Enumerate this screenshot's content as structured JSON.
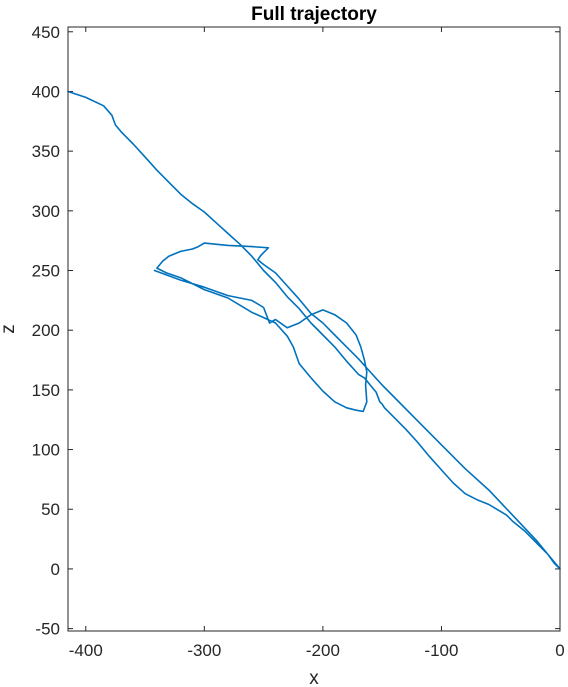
{
  "chart_data": {
    "type": "line",
    "title": "Full trajectory",
    "xlabel": "x",
    "ylabel": "z",
    "xlim": [
      -415,
      0
    ],
    "ylim": [
      -52,
      454
    ],
    "xticks": [
      -400,
      -300,
      -200,
      -100,
      0
    ],
    "yticks": [
      -50,
      0,
      50,
      100,
      150,
      200,
      250,
      300,
      350,
      400,
      450
    ],
    "grid": false,
    "series": [
      {
        "color": "#0072bd",
        "x": [
          -415,
          -400,
          -385,
          -378,
          -375,
          -370,
          -360,
          -350,
          -340,
          -330,
          -320,
          -310,
          -300,
          -290,
          -280,
          -270,
          -260,
          -250,
          -240,
          -230,
          -220,
          -210,
          -200,
          -190,
          -180,
          -170,
          -165,
          -160,
          -155,
          -152,
          -150,
          -148,
          -140,
          -130,
          -120,
          -110,
          -100,
          -90,
          -80,
          -70,
          -60,
          -50,
          -45,
          -40,
          -30,
          -20,
          -10,
          -5,
          -2,
          0,
          -10,
          -20,
          -40,
          -60,
          -80,
          -100,
          -120,
          -140,
          -150,
          -160,
          -170,
          -180,
          -190,
          -200,
          -210,
          -220,
          -230,
          -240,
          -250,
          -255,
          -252,
          -246,
          -260,
          -280,
          -300,
          -305,
          -310,
          -320,
          -330,
          -335,
          -340,
          -332,
          -320,
          -300,
          -280,
          -260,
          -240,
          -230,
          -225,
          -220,
          -210,
          -200,
          -190,
          -180,
          -172,
          -166,
          -163,
          -164,
          -163,
          -165,
          -168,
          -172,
          -180,
          -190,
          -200,
          -210,
          -220,
          -230,
          -240,
          -245,
          -250,
          -260,
          -280,
          -300,
          -320,
          -342
        ],
        "y": [
          400,
          395,
          388,
          380,
          372,
          366,
          356,
          345,
          334,
          324,
          314,
          306,
          299,
          290,
          281,
          272,
          262,
          250,
          240,
          228,
          218,
          206,
          196,
          186,
          174,
          163,
          160,
          154,
          148,
          140,
          138,
          135,
          127,
          117,
          106,
          94,
          83,
          72,
          63,
          58,
          54,
          48,
          45,
          40,
          32,
          22,
          12,
          5,
          2,
          0,
          12,
          24,
          45,
          66,
          84,
          104,
          124,
          144,
          154,
          165,
          176,
          186,
          196,
          206,
          214,
          226,
          237,
          248,
          255,
          259,
          263,
          269,
          270,
          271,
          273,
          270,
          268,
          266,
          262,
          258,
          252,
          248,
          244,
          234,
          227,
          215,
          206,
          195,
          186,
          172,
          160,
          149,
          140,
          135,
          133,
          132,
          140,
          154,
          165,
          175,
          186,
          196,
          206,
          213,
          217,
          213,
          206,
          202,
          209,
          206,
          219,
          225,
          229,
          236,
          242,
          250
        ]
      }
    ]
  }
}
